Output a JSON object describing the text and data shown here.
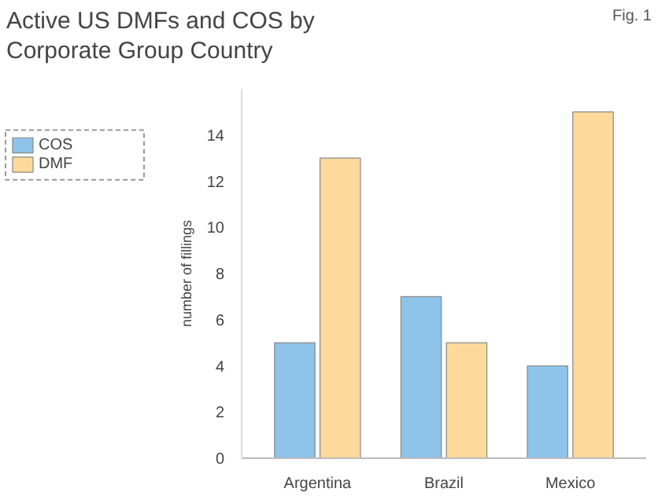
{
  "chart_data": {
    "type": "bar",
    "title": "Active US DMFs and COS by Corporate Group Country",
    "ylabel": "number of fillings",
    "categories": [
      "Argentina",
      "Brazil",
      "Mexico"
    ],
    "series": [
      {
        "name": "COS",
        "color": "#8ec3ea",
        "values": [
          5,
          7,
          4
        ]
      },
      {
        "name": "DMF",
        "color": "#fdd99b",
        "values": [
          13,
          5,
          15
        ]
      }
    ],
    "ylim": [
      0,
      16
    ],
    "yticks": [
      0,
      2,
      4,
      6,
      8,
      10,
      12,
      14
    ],
    "grid": false,
    "legend": "left",
    "annotations": [
      "Fig. 1"
    ]
  }
}
